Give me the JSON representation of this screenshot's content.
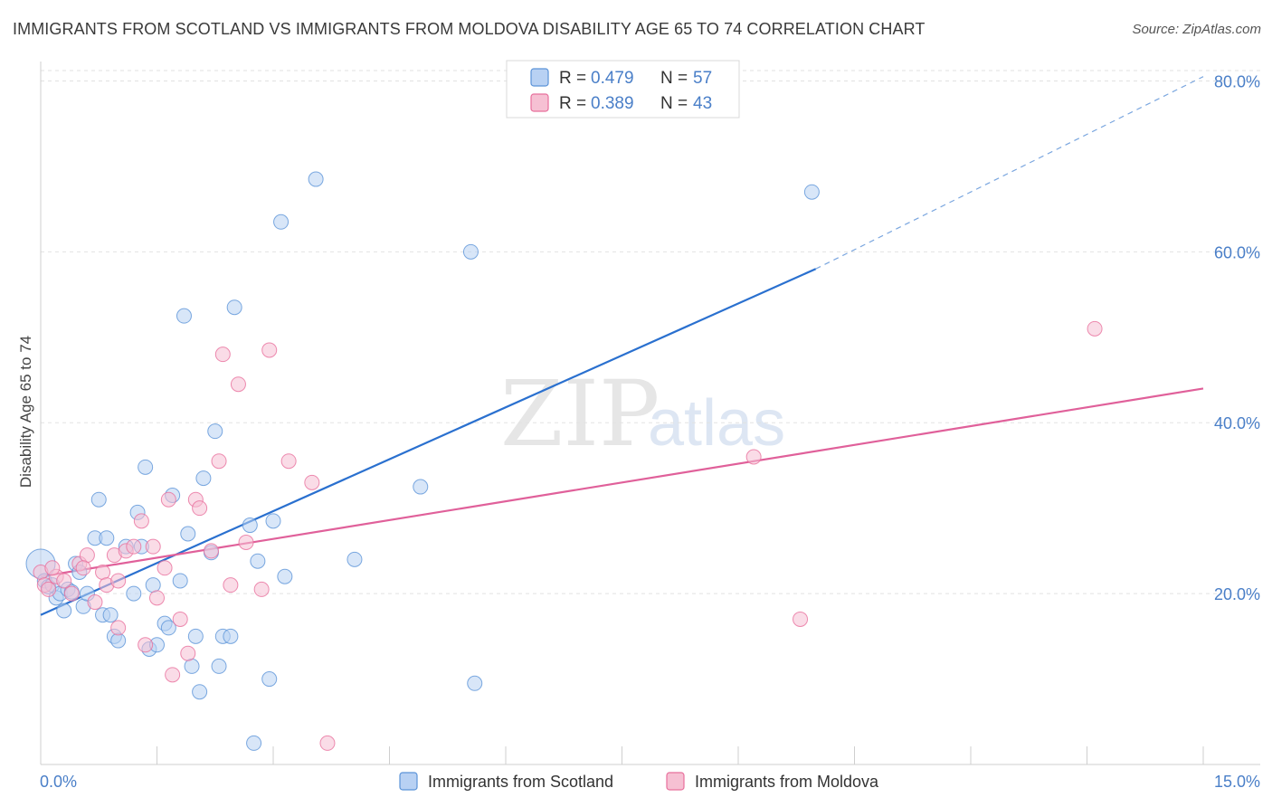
{
  "title": "IMMIGRANTS FROM SCOTLAND VS IMMIGRANTS FROM MOLDOVA DISABILITY AGE 65 TO 74 CORRELATION CHART",
  "source": "Source: ZipAtlas.com",
  "watermark": {
    "zip": "ZIP",
    "atlas": "atlas"
  },
  "colors": {
    "scotland": "#5b93d8",
    "scotland_fill": "#b8d1f3",
    "moldova": "#e86f9c",
    "moldova_fill": "#f6c0d3",
    "axis_label": "#4a7fc8"
  },
  "legend": {
    "scotland": {
      "r_label": "R = ",
      "r_value": "0.479",
      "n_label": "N = ",
      "n_value": "57"
    },
    "moldova": {
      "r_label": "R = ",
      "r_value": "0.389",
      "n_label": "N = ",
      "n_value": "43"
    }
  },
  "chart_data": {
    "type": "scatter",
    "title": "IMMIGRANTS FROM SCOTLAND VS IMMIGRANTS FROM MOLDOVA DISABILITY AGE 65 TO 74 CORRELATION CHART",
    "xlabel": "",
    "ylabel": "Disability Age 65 to 74",
    "xlim": [
      0,
      15
    ],
    "ylim": [
      0,
      81
    ],
    "x_tick_labels": [
      "0.0%",
      "15.0%"
    ],
    "y_ticks": [
      20,
      40,
      60,
      80
    ],
    "y_tick_labels": [
      "20.0%",
      "40.0%",
      "60.0%",
      "80.0%"
    ],
    "grid": true,
    "legend_position": "top-center",
    "series": [
      {
        "name": "Immigrants from Scotland",
        "color": "#5b93d8",
        "fill": "#b8d1f3",
        "points": [
          [
            0.0,
            23.5
          ],
          [
            0.05,
            21.5
          ],
          [
            0.1,
            20.8
          ],
          [
            0.15,
            21.0
          ],
          [
            0.2,
            19.5
          ],
          [
            0.25,
            20.0
          ],
          [
            0.3,
            18.0
          ],
          [
            0.35,
            20.5
          ],
          [
            0.4,
            20.2
          ],
          [
            0.45,
            23.5
          ],
          [
            0.5,
            22.5
          ],
          [
            0.55,
            18.5
          ],
          [
            0.6,
            20.0
          ],
          [
            0.7,
            26.5
          ],
          [
            0.75,
            31.0
          ],
          [
            0.8,
            17.5
          ],
          [
            0.85,
            26.5
          ],
          [
            0.9,
            17.5
          ],
          [
            0.95,
            15.0
          ],
          [
            1.0,
            14.5
          ],
          [
            1.1,
            25.5
          ],
          [
            1.2,
            20.0
          ],
          [
            1.25,
            29.5
          ],
          [
            1.3,
            25.5
          ],
          [
            1.35,
            34.8
          ],
          [
            1.4,
            13.5
          ],
          [
            1.45,
            21.0
          ],
          [
            1.5,
            14.0
          ],
          [
            1.6,
            16.5
          ],
          [
            1.65,
            16.0
          ],
          [
            1.7,
            31.5
          ],
          [
            1.8,
            21.5
          ],
          [
            1.85,
            52.5
          ],
          [
            1.9,
            27.0
          ],
          [
            1.95,
            11.5
          ],
          [
            2.0,
            15.0
          ],
          [
            2.05,
            8.5
          ],
          [
            2.2,
            24.8
          ],
          [
            2.25,
            39.0
          ],
          [
            2.3,
            11.5
          ],
          [
            2.35,
            15.0
          ],
          [
            2.45,
            15.0
          ],
          [
            2.5,
            53.5
          ],
          [
            2.7,
            28.0
          ],
          [
            2.75,
            2.5
          ],
          [
            2.8,
            23.8
          ],
          [
            2.95,
            10.0
          ],
          [
            3.0,
            28.5
          ],
          [
            3.1,
            63.5
          ],
          [
            3.15,
            22.0
          ],
          [
            3.55,
            68.5
          ],
          [
            4.05,
            24.0
          ],
          [
            4.9,
            32.5
          ],
          [
            5.55,
            60.0
          ],
          [
            5.6,
            9.5
          ],
          [
            9.95,
            67.0
          ],
          [
            2.1,
            33.5
          ]
        ],
        "trend": {
          "x1": 0.0,
          "y1": 17.5,
          "x2": 10.0,
          "y2": 58.0,
          "dashed_to_x": 15.0,
          "dashed_to_y": 80.5
        }
      },
      {
        "name": "Immigrants from Moldova",
        "color": "#e86f9c",
        "fill": "#f6c0d3",
        "points": [
          [
            0.0,
            22.5
          ],
          [
            0.05,
            21.0
          ],
          [
            0.1,
            20.5
          ],
          [
            0.2,
            22.0
          ],
          [
            0.3,
            21.5
          ],
          [
            0.4,
            20.0
          ],
          [
            0.5,
            23.5
          ],
          [
            0.6,
            24.5
          ],
          [
            0.7,
            19.0
          ],
          [
            0.8,
            22.5
          ],
          [
            0.85,
            21.0
          ],
          [
            0.95,
            24.5
          ],
          [
            1.0,
            16.0
          ],
          [
            1.1,
            25.0
          ],
          [
            1.2,
            25.5
          ],
          [
            1.3,
            28.5
          ],
          [
            1.35,
            14.0
          ],
          [
            1.45,
            25.5
          ],
          [
            1.5,
            19.5
          ],
          [
            1.6,
            23.0
          ],
          [
            1.65,
            31.0
          ],
          [
            1.7,
            10.5
          ],
          [
            1.8,
            17.0
          ],
          [
            1.9,
            13.0
          ],
          [
            2.0,
            31.0
          ],
          [
            2.05,
            30.0
          ],
          [
            2.2,
            25.0
          ],
          [
            2.3,
            35.5
          ],
          [
            2.35,
            48.0
          ],
          [
            2.45,
            21.0
          ],
          [
            2.55,
            44.5
          ],
          [
            2.65,
            26.0
          ],
          [
            2.85,
            20.5
          ],
          [
            2.95,
            48.5
          ],
          [
            3.2,
            35.5
          ],
          [
            3.5,
            33.0
          ],
          [
            3.7,
            2.5
          ],
          [
            9.2,
            36.0
          ],
          [
            9.8,
            17.0
          ],
          [
            13.6,
            51.0
          ],
          [
            0.15,
            23.0
          ],
          [
            1.0,
            21.5
          ],
          [
            0.55,
            23.0
          ]
        ],
        "trend": {
          "x1": 0.0,
          "y1": 22.0,
          "x2": 15.0,
          "y2": 44.0
        }
      }
    ]
  }
}
